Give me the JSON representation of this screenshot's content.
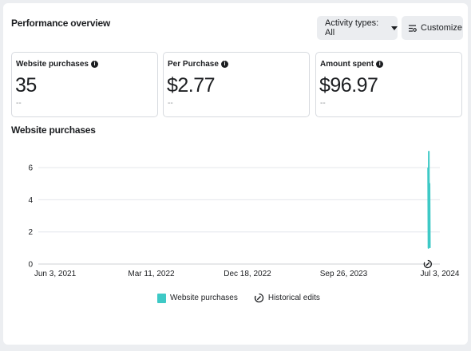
{
  "header": {
    "title": "Performance overview",
    "activity_button": "Activity types: All",
    "customize_button": "Customize"
  },
  "cards": [
    {
      "label": "Website purchases",
      "value": "35",
      "sub": "--"
    },
    {
      "label": "Per Purchase",
      "value": "$2.77",
      "sub": "--"
    },
    {
      "label": "Amount spent",
      "value": "$96.97",
      "sub": "--"
    }
  ],
  "legend": {
    "series_label": "Website purchases",
    "edits_label": "Historical edits"
  },
  "colors": {
    "series": "#3ec9c6",
    "grid": "#e4e6eb"
  },
  "chart_data": {
    "type": "line",
    "title": "Website purchases",
    "xlabel": "",
    "ylabel": "",
    "x_ticks": [
      "Jun 3, 2021",
      "Mar 11, 2022",
      "Dec 18, 2022",
      "Sep 26, 2023",
      "Jul 3, 2024"
    ],
    "y_ticks": [
      0,
      2,
      4,
      6
    ],
    "xlim": [
      "2021-06-03",
      "2024-07-03"
    ],
    "ylim": [
      0,
      7
    ],
    "grid": true,
    "series": [
      {
        "name": "Website purchases",
        "x": [
          "2024-05-31",
          "2024-06-01",
          "2024-06-02",
          "2024-06-03",
          "2024-06-04",
          "2024-06-05"
        ],
        "values": [
          6,
          1,
          7,
          2,
          5,
          1
        ]
      }
    ],
    "annotations": [
      {
        "type": "historical-edit",
        "x": "2024-05-30"
      }
    ]
  }
}
